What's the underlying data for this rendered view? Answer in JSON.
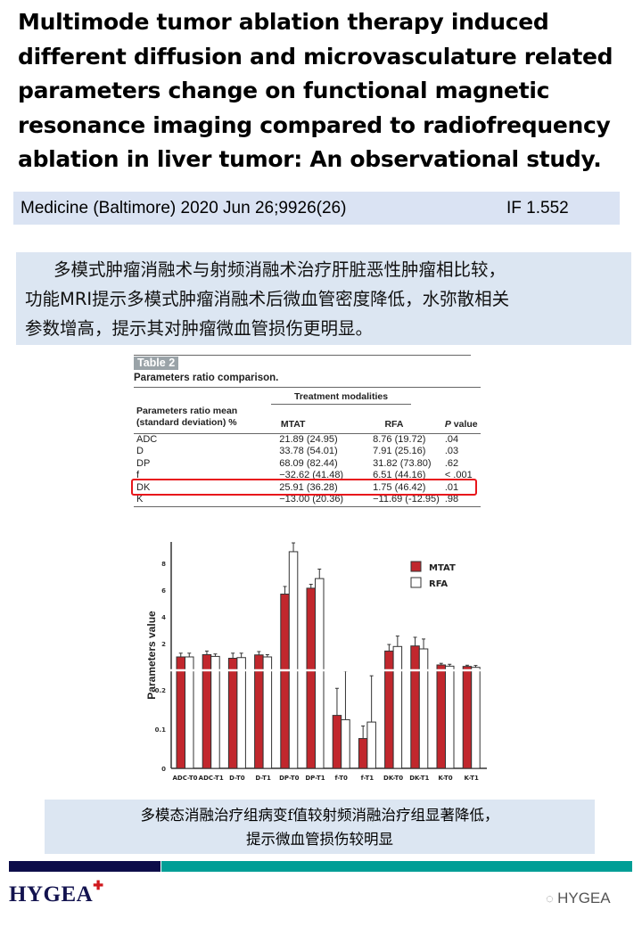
{
  "title_lines": [
    "Multimode tumor ablation therapy induced",
    "different diffusion and microvasculature related",
    "parameters change on functional magnetic",
    "resonance imaging compared to radiofrequency",
    "ablation in liver tumor: An observational study."
  ],
  "citation": {
    "journal": "Medicine (Baltimore) 2020 Jun 26;9926(26)",
    "impact_factor": "IF 1.552"
  },
  "summary_lines": [
    "多模式肿瘤消融术与射频消融术治疗肝脏恶性肿瘤相比较，",
    "功能MRI提示多模式肿瘤消融术后微血管密度降低，水弥散相关",
    "参数增高，提示其对肿瘤微血管损伤更明显。"
  ],
  "table": {
    "tag": "Table 2",
    "caption": "Parameters ratio comparison.",
    "group_header": "Treatment modalities",
    "row_header_1": "Parameters ratio mean",
    "row_header_2": "(standard deviation) %",
    "col_mtat": "MTAT",
    "col_rfa": "RFA",
    "col_p_italic": "P",
    "col_p_rest": " value",
    "rows": [
      [
        "ADC",
        "21.89 (24.95)",
        "8.76 (19.72)",
        ".04"
      ],
      [
        "D",
        "33.78 (54.01)",
        "7.91 (25.16)",
        ".03"
      ],
      [
        "DP",
        "68.09 (82.44)",
        "31.82 (73.80)",
        ".62"
      ],
      [
        "f",
        "−32.62 (41.48)",
        "6.51 (44.16)",
        "< .001"
      ],
      [
        "DK",
        "25.91 (36.28)",
        "1.75 (46.42)",
        ".01"
      ],
      [
        "K",
        "−13.00 (20.36)",
        "−11.69 (-12.95)",
        ".98"
      ]
    ],
    "highlight_row": "f",
    "highlight_color": "#e8161b"
  },
  "chart_data": {
    "type": "bar",
    "ylabel": "Parameters value",
    "axis": "broken",
    "lower_range": [
      0,
      0.25
    ],
    "upper_range": [
      0,
      9.6
    ],
    "lower_ticks": [
      "0",
      "0.1",
      "0.2"
    ],
    "upper_ticks": [
      "2",
      "4",
      "6",
      "8"
    ],
    "categories": [
      "ADC-T0",
      "ADC-T1",
      "D-T0",
      "D-T1",
      "DP-T0",
      "DP-T1",
      "f-T0",
      "f-T1",
      "DK-T0",
      "DK-T1",
      "K-T0",
      "K-T1"
    ],
    "segment": [
      "upper",
      "upper",
      "upper",
      "upper",
      "upper",
      "upper",
      "lower",
      "lower",
      "upper",
      "upper",
      "upper",
      "upper"
    ],
    "series": [
      {
        "name": "MTAT",
        "color": "#c1272d",
        "values": [
          1.0,
          1.17,
          0.9,
          1.15,
          5.7,
          6.14,
          0.135,
          0.076,
          1.44,
          1.82,
          0.4,
          0.29
        ],
        "error": [
          0.28,
          0.27,
          0.38,
          0.25,
          0.57,
          0.29,
          0.069,
          0.032,
          0.49,
          0.65,
          0.12,
          0.09
        ]
      },
      {
        "name": "RFA",
        "color": "#ffffff",
        "values": [
          1.0,
          1.04,
          0.95,
          1.0,
          8.87,
          6.86,
          0.124,
          0.118,
          1.78,
          1.6,
          0.31,
          0.22
        ],
        "error": [
          0.28,
          0.18,
          0.33,
          0.17,
          0.66,
          0.71,
          0.124,
          0.118,
          0.78,
          0.74,
          0.14,
          0.14
        ]
      }
    ],
    "legend": "top-right"
  },
  "note_lines": [
    "多模态消融治疗组病变f值较射频消融治疗组显著降低，",
    "提示微血管损伤较明显"
  ],
  "footer": {
    "logo": "HYGEA",
    "watermark": "HYGEA",
    "navy": "#0d0d4a",
    "teal": "#009e96"
  }
}
